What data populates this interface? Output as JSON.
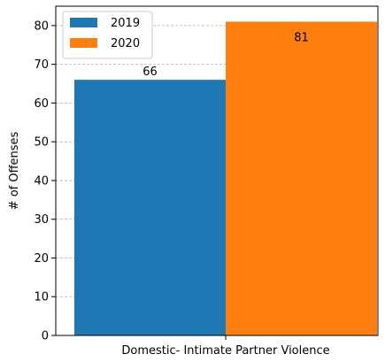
{
  "chart_data": {
    "type": "bar",
    "categories": [
      "Domestic- Intimate Partner Violence"
    ],
    "series": [
      {
        "name": "2019",
        "values": [
          66
        ],
        "color": "#1f77b4"
      },
      {
        "name": "2020",
        "values": [
          81
        ],
        "color": "#ff7f0e"
      }
    ],
    "data_labels": [
      "66",
      "81"
    ],
    "title": "",
    "xlabel": "",
    "ylabel": "# of Offenses",
    "ylim": [
      0,
      85
    ],
    "yticks": [
      0,
      10,
      20,
      30,
      40,
      50,
      60,
      70,
      80
    ],
    "grid": "horizontal dashed",
    "legend_position": "top-left"
  }
}
